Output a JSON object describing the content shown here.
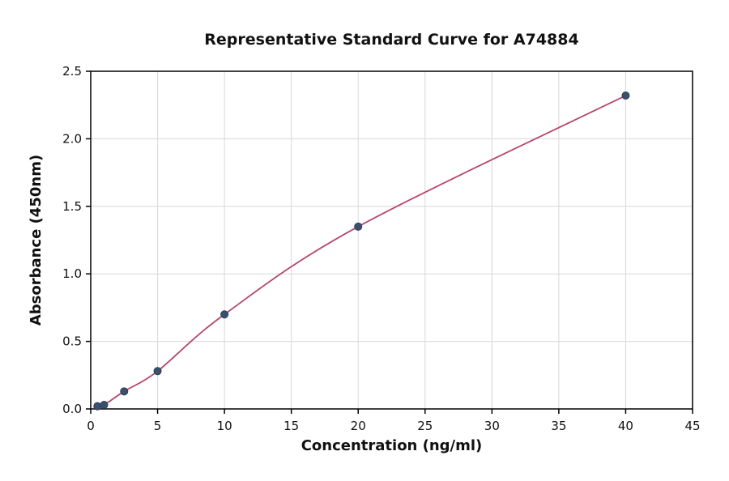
{
  "chart_data": {
    "type": "scatter",
    "title": "Representative Standard Curve for A74884",
    "xlabel": "Concentration (ng/ml)",
    "ylabel": "Absorbance (450nm)",
    "xlim": [
      0,
      45
    ],
    "ylim": [
      0,
      2.5
    ],
    "x_ticks": [
      "0",
      "5",
      "10",
      "15",
      "20",
      "25",
      "30",
      "35",
      "40",
      "45"
    ],
    "y_ticks": [
      "0.0",
      "0.5",
      "1.0",
      "1.5",
      "2.0",
      "2.5"
    ],
    "grid": true,
    "legend": "none",
    "points": [
      {
        "x": 0.5,
        "y": 0.02
      },
      {
        "x": 1.0,
        "y": 0.03
      },
      {
        "x": 2.5,
        "y": 0.13
      },
      {
        "x": 5.0,
        "y": 0.28
      },
      {
        "x": 10.0,
        "y": 0.7
      },
      {
        "x": 20.0,
        "y": 1.35
      },
      {
        "x": 40.0,
        "y": 2.32
      }
    ],
    "colors": {
      "line": "#b5476b",
      "point_fill": "#39516e",
      "point_edge": "#2c3e55",
      "grid": "#d8d8d8",
      "axis": "#000000",
      "background": "#ffffff"
    }
  }
}
